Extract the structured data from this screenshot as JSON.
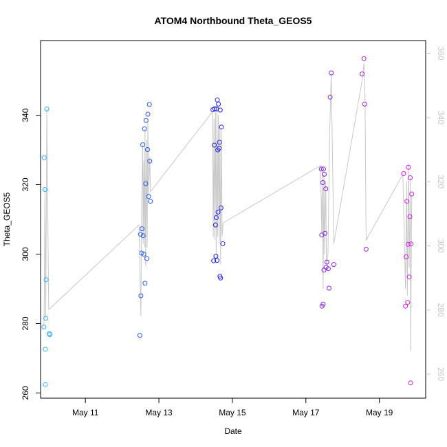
{
  "chart_data": {
    "type": "scatter",
    "title": "ATOM4 Northbound Theta_GEOS5",
    "xlabel": "Date",
    "ylabel": "Theta_GEOS5",
    "x_ticks": [
      {
        "label": "May 11",
        "value": 11.0
      },
      {
        "label": "May 13",
        "value": 13.0
      },
      {
        "label": "May 15",
        "value": 15.0
      },
      {
        "label": "May 17",
        "value": 17.0
      },
      {
        "label": "May 19",
        "value": 19.0
      }
    ],
    "y_ticks_left": [
      "260",
      "280",
      "300",
      "320",
      "340"
    ],
    "y_ticks_right": [
      "260",
      "280",
      "300",
      "320",
      "340",
      "360"
    ],
    "ylim_left": [
      258.5,
      361.5
    ],
    "ylim_right": [
      252.5,
      364.0
    ],
    "xlim": [
      9.78,
      20.26
    ],
    "grid": false,
    "legend": "none",
    "colors": {
      "start": "#33b0ff",
      "mid": "#2020e0",
      "end": "#e020e0",
      "line": "#c8c8c8"
    },
    "points": [
      {
        "x": 9.87,
        "y": 279.0
      },
      {
        "x": 9.88,
        "y": 327.8
      },
      {
        "x": 9.9,
        "y": 318.6
      },
      {
        "x": 9.91,
        "y": 262.4
      },
      {
        "x": 9.91,
        "y": 272.6
      },
      {
        "x": 9.92,
        "y": 281.5
      },
      {
        "x": 9.93,
        "y": 292.6
      },
      {
        "x": 9.95,
        "y": 341.8
      },
      {
        "x": 10.02,
        "y": 277.1
      },
      {
        "x": 10.03,
        "y": 276.8
      },
      {
        "x": 12.48,
        "y": 276.6
      },
      {
        "x": 12.5,
        "y": 305.7
      },
      {
        "x": 12.51,
        "y": 288.0
      },
      {
        "x": 12.53,
        "y": 300.3
      },
      {
        "x": 12.54,
        "y": 307.3
      },
      {
        "x": 12.56,
        "y": 331.5
      },
      {
        "x": 12.57,
        "y": 305.3
      },
      {
        "x": 12.59,
        "y": 300.0
      },
      {
        "x": 12.61,
        "y": 336.1
      },
      {
        "x": 12.62,
        "y": 291.6
      },
      {
        "x": 12.64,
        "y": 320.3
      },
      {
        "x": 12.65,
        "y": 338.5
      },
      {
        "x": 12.67,
        "y": 298.7
      },
      {
        "x": 12.69,
        "y": 330.1
      },
      {
        "x": 12.7,
        "y": 340.3
      },
      {
        "x": 12.72,
        "y": 316.6
      },
      {
        "x": 12.74,
        "y": 343.1
      },
      {
        "x": 12.75,
        "y": 326.8
      },
      {
        "x": 12.77,
        "y": 315.2
      },
      {
        "x": 14.47,
        "y": 341.6
      },
      {
        "x": 14.49,
        "y": 298.1
      },
      {
        "x": 14.51,
        "y": 331.4
      },
      {
        "x": 14.52,
        "y": 341.9
      },
      {
        "x": 14.54,
        "y": 308.4
      },
      {
        "x": 14.55,
        "y": 299.4
      },
      {
        "x": 14.56,
        "y": 310.5
      },
      {
        "x": 14.57,
        "y": 341.8
      },
      {
        "x": 14.58,
        "y": 298.2
      },
      {
        "x": 14.59,
        "y": 344.4
      },
      {
        "x": 14.6,
        "y": 330.0
      },
      {
        "x": 14.61,
        "y": 312.1
      },
      {
        "x": 14.62,
        "y": 343.2
      },
      {
        "x": 14.64,
        "y": 330.5
      },
      {
        "x": 14.65,
        "y": 332.2
      },
      {
        "x": 14.66,
        "y": 293.6
      },
      {
        "x": 14.67,
        "y": 341.5
      },
      {
        "x": 14.68,
        "y": 293.1
      },
      {
        "x": 14.69,
        "y": 313.3
      },
      {
        "x": 14.7,
        "y": 336.6
      },
      {
        "x": 14.74,
        "y": 303.0
      },
      {
        "x": 17.42,
        "y": 324.5
      },
      {
        "x": 17.43,
        "y": 305.5
      },
      {
        "x": 17.44,
        "y": 285.0
      },
      {
        "x": 17.46,
        "y": 320.6
      },
      {
        "x": 17.47,
        "y": 285.6
      },
      {
        "x": 17.48,
        "y": 324.5
      },
      {
        "x": 17.49,
        "y": 295.4
      },
      {
        "x": 17.5,
        "y": 323.0
      },
      {
        "x": 17.52,
        "y": 306.0
      },
      {
        "x": 17.54,
        "y": 318.8
      },
      {
        "x": 17.55,
        "y": 296.2
      },
      {
        "x": 17.57,
        "y": 297.7
      },
      {
        "x": 17.61,
        "y": 295.8
      },
      {
        "x": 17.63,
        "y": 290.2
      },
      {
        "x": 17.66,
        "y": 345.2
      },
      {
        "x": 17.69,
        "y": 352.2
      },
      {
        "x": 17.76,
        "y": 297.0
      },
      {
        "x": 18.53,
        "y": 351.9
      },
      {
        "x": 18.58,
        "y": 356.3
      },
      {
        "x": 18.6,
        "y": 343.2
      },
      {
        "x": 18.64,
        "y": 301.4
      },
      {
        "x": 19.66,
        "y": 323.2
      },
      {
        "x": 19.71,
        "y": 285.0
      },
      {
        "x": 19.73,
        "y": 299.2
      },
      {
        "x": 19.75,
        "y": 315.2
      },
      {
        "x": 19.77,
        "y": 286.1
      },
      {
        "x": 19.78,
        "y": 302.8
      },
      {
        "x": 19.79,
        "y": 325.0
      },
      {
        "x": 19.81,
        "y": 293.4
      },
      {
        "x": 19.83,
        "y": 310.8
      },
      {
        "x": 19.84,
        "y": 322.0
      },
      {
        "x": 19.85,
        "y": 262.9
      },
      {
        "x": 19.86,
        "y": 302.9
      },
      {
        "x": 19.88,
        "y": 317.3
      }
    ],
    "line": [
      {
        "x": 9.87,
        "y": 279.0
      },
      {
        "x": 9.88,
        "y": 285.0
      },
      {
        "x": 9.9,
        "y": 318.6
      },
      {
        "x": 9.91,
        "y": 300.0
      },
      {
        "x": 9.92,
        "y": 281.5
      },
      {
        "x": 9.95,
        "y": 341.8
      },
      {
        "x": 10.0,
        "y": 284.0
      },
      {
        "x": 12.46,
        "y": 308.4
      },
      {
        "x": 12.51,
        "y": 282.0
      },
      {
        "x": 12.53,
        "y": 314.0
      },
      {
        "x": 12.56,
        "y": 331.5
      },
      {
        "x": 12.57,
        "y": 303.0
      },
      {
        "x": 12.59,
        "y": 327.0
      },
      {
        "x": 12.61,
        "y": 302.0
      },
      {
        "x": 12.62,
        "y": 336.0
      },
      {
        "x": 12.64,
        "y": 296.5
      },
      {
        "x": 12.66,
        "y": 333.0
      },
      {
        "x": 12.68,
        "y": 302.0
      },
      {
        "x": 12.7,
        "y": 338.0
      },
      {
        "x": 12.72,
        "y": 316.6
      },
      {
        "x": 12.75,
        "y": 328.0
      },
      {
        "x": 12.77,
        "y": 318.0
      },
      {
        "x": 14.46,
        "y": 341.0
      },
      {
        "x": 14.48,
        "y": 305.0
      },
      {
        "x": 14.5,
        "y": 339.0
      },
      {
        "x": 14.52,
        "y": 304.0
      },
      {
        "x": 14.54,
        "y": 341.0
      },
      {
        "x": 14.56,
        "y": 299.0
      },
      {
        "x": 14.58,
        "y": 343.0
      },
      {
        "x": 14.6,
        "y": 305.0
      },
      {
        "x": 14.62,
        "y": 340.0
      },
      {
        "x": 14.64,
        "y": 303.0
      },
      {
        "x": 14.66,
        "y": 337.0
      },
      {
        "x": 14.68,
        "y": 297.0
      },
      {
        "x": 14.7,
        "y": 336.0
      },
      {
        "x": 14.72,
        "y": 305.0
      },
      {
        "x": 14.75,
        "y": 309.0
      },
      {
        "x": 17.4,
        "y": 325.5
      },
      {
        "x": 17.43,
        "y": 306.0
      },
      {
        "x": 17.45,
        "y": 324.0
      },
      {
        "x": 17.47,
        "y": 290.0
      },
      {
        "x": 17.49,
        "y": 323.0
      },
      {
        "x": 17.51,
        "y": 300.0
      },
      {
        "x": 17.54,
        "y": 321.0
      },
      {
        "x": 17.56,
        "y": 297.0
      },
      {
        "x": 17.6,
        "y": 300.0
      },
      {
        "x": 17.65,
        "y": 336.0
      },
      {
        "x": 17.69,
        "y": 352.0
      },
      {
        "x": 17.76,
        "y": 303.0
      },
      {
        "x": 18.53,
        "y": 350.0
      },
      {
        "x": 18.58,
        "y": 355.0
      },
      {
        "x": 18.61,
        "y": 345.0
      },
      {
        "x": 18.64,
        "y": 304.0
      },
      {
        "x": 19.64,
        "y": 323.0
      },
      {
        "x": 19.71,
        "y": 290.0
      },
      {
        "x": 19.74,
        "y": 321.0
      },
      {
        "x": 19.76,
        "y": 288.0
      },
      {
        "x": 19.79,
        "y": 326.0
      },
      {
        "x": 19.81,
        "y": 296.0
      },
      {
        "x": 19.84,
        "y": 322.0
      },
      {
        "x": 19.85,
        "y": 272.0
      },
      {
        "x": 19.88,
        "y": 317.0
      }
    ]
  }
}
